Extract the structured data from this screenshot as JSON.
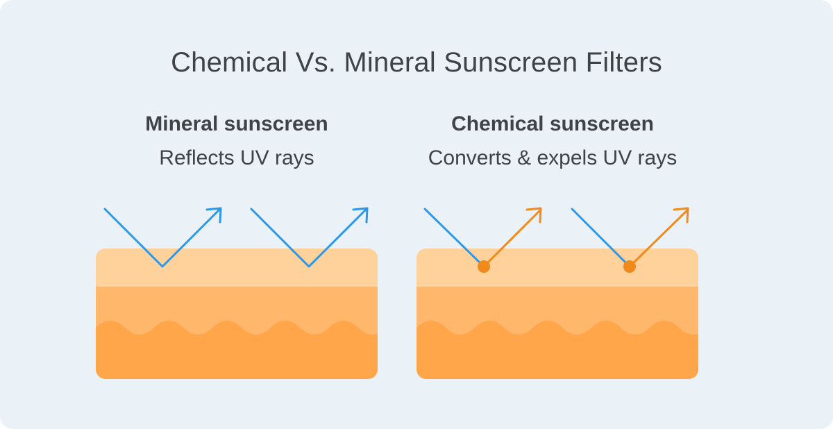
{
  "title": "Chemical Vs. Mineral Sunscreen Filters",
  "mineral": {
    "heading": "Mineral sunscreen",
    "description": "Reflects UV rays"
  },
  "chemical": {
    "heading": "Chemical sunscreen",
    "description": "Converts & expels UV rays"
  },
  "colors": {
    "background": "#eaf2f7",
    "text": "#3f4346",
    "uv_ray": "#2b98ea",
    "converted_ray": "#f08a1c",
    "skin_top": "#ffd29c",
    "skin_middle": "#ffb76b",
    "skin_bottom": "#ffa64a"
  }
}
